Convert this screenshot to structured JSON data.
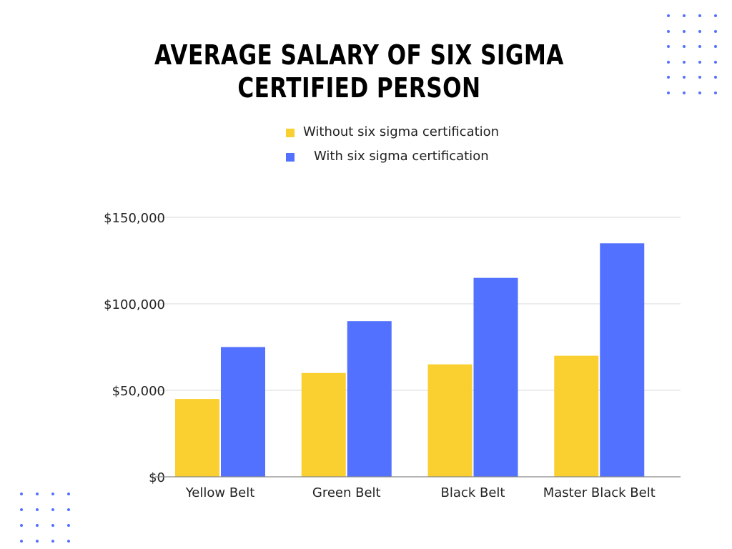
{
  "title": {
    "line1": "AVERAGE SALARY OF SIX SIGMA",
    "line2": "CERTIFIED PERSON"
  },
  "legend": {
    "items": [
      {
        "label": "Without six sigma certification",
        "color": "#F9D02F"
      },
      {
        "label": "With six sigma certification",
        "color": "#5271FF"
      }
    ]
  },
  "decor": {
    "dot_color": "#5271FF"
  },
  "chart_data": {
    "type": "bar",
    "categories": [
      "Yellow Belt",
      "Green Belt",
      "Black Belt",
      "Master Black Belt"
    ],
    "series": [
      {
        "name": "Without six sigma certification",
        "values": [
          45000,
          60000,
          65000,
          70000
        ],
        "color": "#F9D02F"
      },
      {
        "name": "With six sigma certification",
        "values": [
          75000,
          90000,
          115000,
          135000
        ],
        "color": "#5271FF"
      }
    ],
    "ylim": [
      0,
      150000
    ],
    "yticks": [
      0,
      50000,
      100000,
      150000
    ],
    "ytick_labels": [
      "$0",
      "$50,000",
      "$100,000",
      "$150,000"
    ],
    "grid": true,
    "legend_position": "top"
  }
}
